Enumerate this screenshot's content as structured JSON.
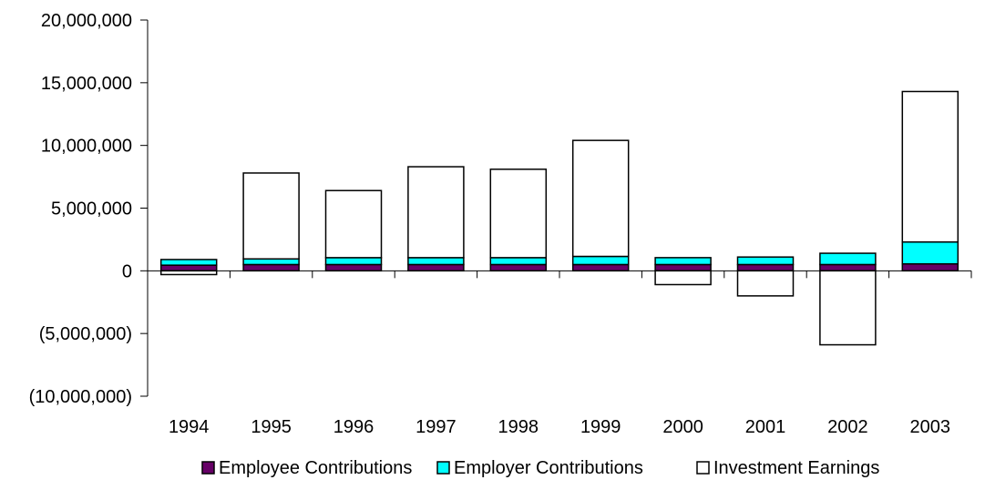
{
  "chart_data": {
    "type": "bar",
    "stacked": true,
    "categories": [
      "1994",
      "1995",
      "1996",
      "1997",
      "1998",
      "1999",
      "2000",
      "2001",
      "2002",
      "2003"
    ],
    "series": [
      {
        "name": "Employee Contributions",
        "color": "#660066",
        "values": [
          450000,
          500000,
          500000,
          500000,
          500000,
          500000,
          500000,
          500000,
          500000,
          550000
        ]
      },
      {
        "name": "Employer Contributions",
        "color": "#00FFFF",
        "values": [
          450000,
          450000,
          550000,
          550000,
          550000,
          650000,
          550000,
          600000,
          900000,
          1750000
        ]
      },
      {
        "name": "Investment Earnings",
        "color": "#FFFFFF",
        "values": [
          -300000,
          6850000,
          5350000,
          7250000,
          7050000,
          9250000,
          -1100000,
          -2000000,
          -5900000,
          12000000
        ]
      }
    ],
    "ylim": [
      -10000000,
      20000000
    ],
    "y_ticks": [
      20000000,
      15000000,
      10000000,
      5000000,
      0,
      -5000000,
      -10000000
    ],
    "y_tick_labels": [
      "20,000,000",
      "15,000,000",
      "10,000,000",
      "5,000,000",
      "0",
      "(5,000,000)",
      "(10,000,000)"
    ],
    "title": "",
    "xlabel": "",
    "ylabel": "",
    "grid": false,
    "legend_position": "bottom"
  }
}
